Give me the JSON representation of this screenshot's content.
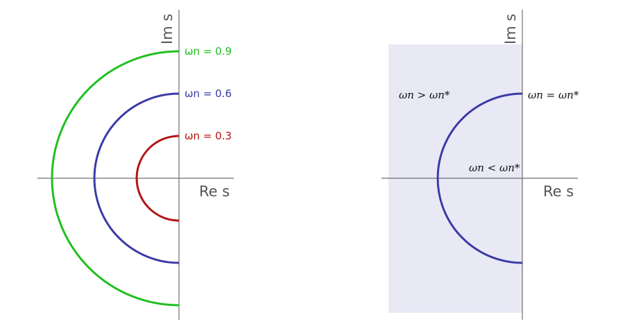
{
  "colors": {
    "green": "#1fbf1f",
    "blue": "#3a3aa6",
    "red": "#b31414",
    "axis": "#6e6e6e",
    "region": "#e9e9f6"
  },
  "left": {
    "re_axis_label": "Re s",
    "im_axis_label": "Im s",
    "curves": [
      {
        "label": "ωn = 0.9",
        "radius": 0.9,
        "color_key": "green"
      },
      {
        "label": "ωn = 0.6",
        "radius": 0.6,
        "color_key": "blue"
      },
      {
        "label": "ωn = 0.3",
        "radius": 0.3,
        "color_key": "red"
      }
    ]
  },
  "right": {
    "re_axis_label": "Re s",
    "im_axis_label": "Im s",
    "labels": {
      "greater": "ωn > ωn*",
      "equal": "ωn = ωn*",
      "less": "ωn < ωn*"
    }
  }
}
